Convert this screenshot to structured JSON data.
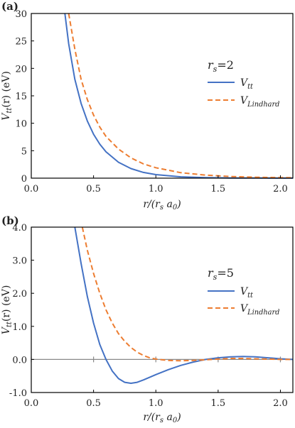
{
  "chart_data": [
    {
      "panel": "(a)",
      "type": "line",
      "annotation": "r_s=2",
      "xlabel": "r/(r_s a_0)",
      "ylabel": "V_tt(r) (eV)",
      "xlim": [
        0.0,
        2.1
      ],
      "ylim": [
        0,
        30
      ],
      "xticks": [
        "0.0",
        "0.5",
        "1.0",
        "1.5",
        "2.0"
      ],
      "xtick_values": [
        0.0,
        0.5,
        1.0,
        1.5,
        2.0
      ],
      "yticks": [
        "0",
        "5",
        "10",
        "15",
        "20",
        "25",
        "30"
      ],
      "ytick_values": [
        0,
        5,
        10,
        15,
        20,
        25,
        30
      ],
      "grid": false,
      "legend_position": "right",
      "series": [
        {
          "name": "V_tt",
          "color": "#4472C4",
          "style": "solid",
          "x": [
            0.27,
            0.3,
            0.35,
            0.4,
            0.45,
            0.5,
            0.55,
            0.6,
            0.7,
            0.8,
            0.9,
            1.0,
            1.2,
            1.4,
            1.6,
            1.8,
            2.0,
            2.1
          ],
          "y": [
            30.0,
            24.5,
            18.0,
            13.6,
            10.4,
            8.0,
            6.2,
            4.8,
            2.9,
            1.75,
            1.05,
            0.65,
            0.25,
            0.1,
            0.04,
            0.02,
            0.01,
            0.01
          ]
        },
        {
          "name": "V_Lindhard",
          "color": "#ED7D31",
          "style": "dashed",
          "x": [
            0.3,
            0.35,
            0.4,
            0.45,
            0.5,
            0.55,
            0.6,
            0.7,
            0.8,
            0.9,
            1.0,
            1.2,
            1.4,
            1.6,
            1.8,
            2.0,
            2.1
          ],
          "y": [
            30.0,
            23.5,
            18.0,
            14.3,
            11.5,
            9.3,
            7.6,
            5.3,
            3.7,
            2.6,
            1.9,
            1.0,
            0.55,
            0.3,
            0.17,
            0.1,
            0.08
          ]
        }
      ]
    },
    {
      "panel": "(b)",
      "type": "line",
      "annotation": "r_s=5",
      "xlabel": "r/(r_s a_0)",
      "ylabel": "V_tt(r) (eV)",
      "xlim": [
        0.0,
        2.1
      ],
      "ylim": [
        -1.0,
        4.0
      ],
      "xticks": [
        "0.0",
        "0.5",
        "1.0",
        "1.5",
        "2.0"
      ],
      "xtick_values": [
        0.0,
        0.5,
        1.0,
        1.5,
        2.0
      ],
      "yticks": [
        "-1.0",
        "0.0",
        "1.0",
        "2.0",
        "3.0",
        "4.0"
      ],
      "ytick_values": [
        -1.0,
        0.0,
        1.0,
        2.0,
        3.0,
        4.0
      ],
      "zero_line": true,
      "grid": false,
      "legend_position": "right",
      "series": [
        {
          "name": "V_tt",
          "color": "#4472C4",
          "style": "solid",
          "x": [
            0.35,
            0.4,
            0.45,
            0.5,
            0.55,
            0.6,
            0.65,
            0.7,
            0.75,
            0.8,
            0.85,
            0.9,
            0.95,
            1.0,
            1.1,
            1.2,
            1.3,
            1.4,
            1.5,
            1.6,
            1.7,
            1.8,
            1.9,
            2.0,
            2.1
          ],
          "y": [
            4.0,
            2.9,
            1.9,
            1.1,
            0.45,
            0.0,
            -0.35,
            -0.58,
            -0.69,
            -0.72,
            -0.69,
            -0.62,
            -0.54,
            -0.46,
            -0.31,
            -0.18,
            -0.08,
            0.0,
            0.05,
            0.08,
            0.09,
            0.08,
            0.05,
            0.02,
            0.0
          ]
        },
        {
          "name": "V_Lindhard",
          "color": "#ED7D31",
          "style": "dashed",
          "x": [
            0.41,
            0.45,
            0.5,
            0.55,
            0.6,
            0.65,
            0.7,
            0.75,
            0.8,
            0.85,
            0.9,
            0.95,
            1.0,
            1.1,
            1.2,
            1.3,
            1.4,
            1.5,
            1.6,
            1.7,
            1.8,
            1.9,
            2.0,
            2.1
          ],
          "y": [
            4.0,
            3.3,
            2.6,
            2.0,
            1.5,
            1.1,
            0.78,
            0.55,
            0.36,
            0.22,
            0.12,
            0.05,
            0.01,
            -0.03,
            -0.04,
            -0.03,
            -0.01,
            0.01,
            0.03,
            0.03,
            0.02,
            0.01,
            0.0,
            0.0
          ]
        }
      ]
    }
  ]
}
